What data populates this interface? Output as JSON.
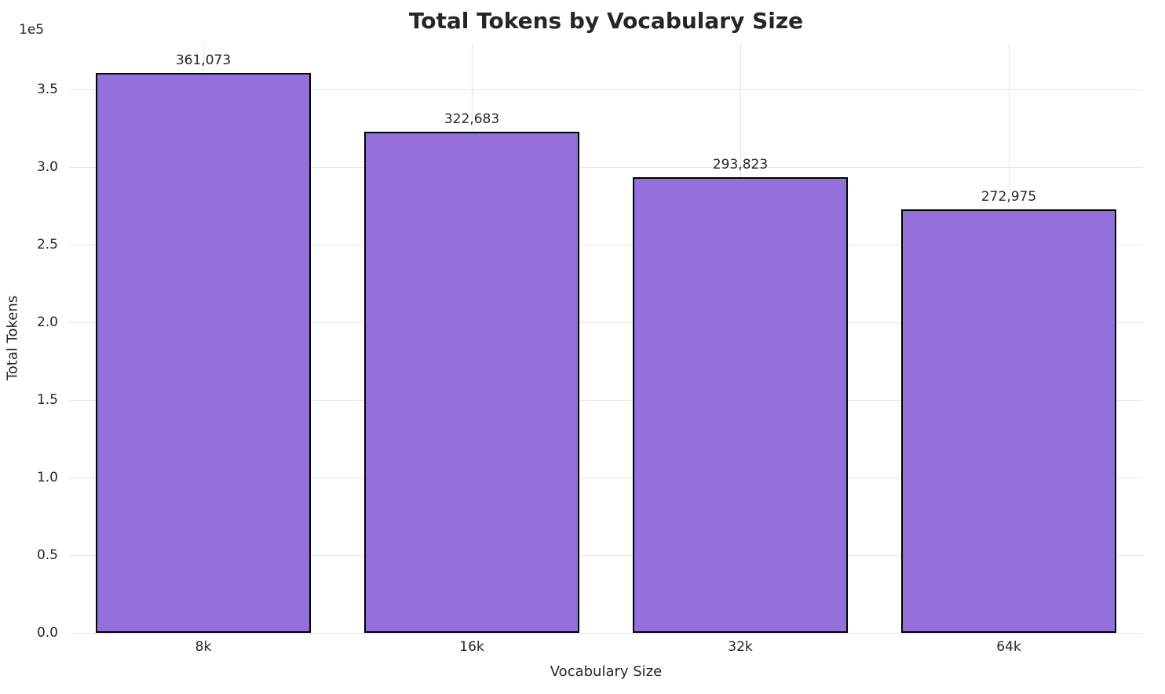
{
  "chart_data": {
    "type": "bar",
    "title": "Total Tokens by Vocabulary Size",
    "xlabel": "Vocabulary Size",
    "ylabel": "Total Tokens",
    "categories": [
      "8k",
      "16k",
      "32k",
      "64k"
    ],
    "values": [
      361073,
      322683,
      293823,
      272975
    ],
    "value_labels": [
      "361,073",
      "322,683",
      "293,823",
      "272,975"
    ],
    "ylim": [
      0,
      380000
    ],
    "yticks": [
      0,
      50000,
      100000,
      150000,
      200000,
      250000,
      300000,
      350000
    ],
    "ytick_labels": [
      "0.0",
      "0.5",
      "1.0",
      "1.5",
      "2.0",
      "2.5",
      "3.0",
      "3.5"
    ],
    "offset_text": "1e5",
    "grid": true,
    "legend": "none",
    "bar_color": "#9370DB",
    "bar_edge_color": "#000000",
    "grid_color": "#e5e5e5",
    "background": "#ffffff",
    "text_color": "#262626"
  }
}
